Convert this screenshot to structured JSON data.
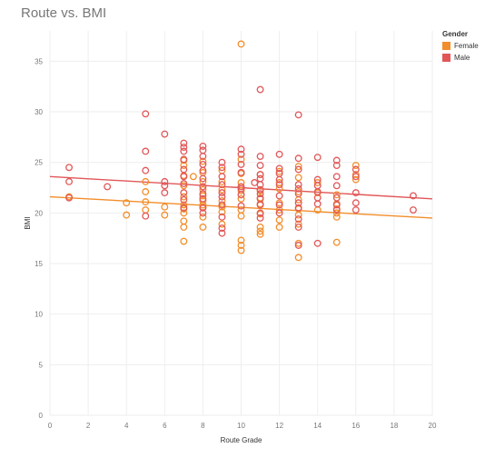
{
  "chart_data": {
    "type": "scatter",
    "title": "Route vs. BMI",
    "xlabel": "Route Grade",
    "ylabel": "BMI",
    "xlim": [
      0,
      20
    ],
    "ylim": [
      0,
      38
    ],
    "xticks": [
      0,
      2,
      4,
      6,
      8,
      10,
      12,
      14,
      16,
      18,
      20
    ],
    "yticks": [
      0,
      5,
      10,
      15,
      20,
      25,
      30,
      35
    ],
    "grid": true,
    "legend": {
      "title": "Gender",
      "position": "top-right"
    },
    "series": [
      {
        "name": "Female",
        "color": "#f28e2b",
        "marker": "open-circle",
        "trend_line": [
          [
            0,
            21.6
          ],
          [
            20,
            19.5
          ]
        ],
        "points": [
          [
            1,
            21.6
          ],
          [
            4,
            21.0
          ],
          [
            4,
            19.8
          ],
          [
            5,
            23.1
          ],
          [
            5,
            22.1
          ],
          [
            5,
            21.1
          ],
          [
            5,
            20.3
          ],
          [
            6,
            20.6
          ],
          [
            6,
            19.8
          ],
          [
            7,
            25.2
          ],
          [
            7,
            24.7
          ],
          [
            7,
            23.7
          ],
          [
            7,
            22.7
          ],
          [
            7,
            21.6
          ],
          [
            7,
            20.8
          ],
          [
            7,
            20.4
          ],
          [
            7,
            20.0
          ],
          [
            7,
            19.2
          ],
          [
            7,
            18.6
          ],
          [
            7,
            17.2
          ],
          [
            7.5,
            23.6
          ],
          [
            8,
            25.1
          ],
          [
            8,
            24.0
          ],
          [
            8,
            23.1
          ],
          [
            8,
            22.3
          ],
          [
            8,
            21.7
          ],
          [
            8,
            21.2
          ],
          [
            8,
            20.8
          ],
          [
            8,
            20.6
          ],
          [
            8,
            19.6
          ],
          [
            8,
            18.6
          ],
          [
            9,
            24.2
          ],
          [
            9,
            23.1
          ],
          [
            9,
            22.3
          ],
          [
            9,
            21.2
          ],
          [
            9,
            20.6
          ],
          [
            9,
            20.1
          ],
          [
            9,
            18.9
          ],
          [
            10,
            25.3
          ],
          [
            10,
            23.9
          ],
          [
            10,
            23.0
          ],
          [
            10,
            22.2
          ],
          [
            10,
            21.4
          ],
          [
            10,
            20.3
          ],
          [
            10,
            19.7
          ],
          [
            10,
            17.3
          ],
          [
            10,
            16.8
          ],
          [
            10,
            16.3
          ],
          [
            11,
            23.8
          ],
          [
            11,
            22.2
          ],
          [
            11,
            21.5
          ],
          [
            11,
            20.9
          ],
          [
            11,
            19.9
          ],
          [
            11,
            18.6
          ],
          [
            11,
            18.2
          ],
          [
            11,
            17.9
          ],
          [
            12,
            24.1
          ],
          [
            12,
            23.0
          ],
          [
            12,
            22.4
          ],
          [
            12,
            21.0
          ],
          [
            12,
            20.3
          ],
          [
            12,
            19.3
          ],
          [
            12,
            18.6
          ],
          [
            13,
            24.6
          ],
          [
            13,
            23.5
          ],
          [
            13,
            22.1
          ],
          [
            13,
            21.3
          ],
          [
            13,
            20.4
          ],
          [
            13,
            19.8
          ],
          [
            13,
            18.9
          ],
          [
            13,
            17.0
          ],
          [
            13,
            15.6
          ],
          [
            14,
            23.0
          ],
          [
            14,
            22.0
          ],
          [
            14,
            20.3
          ],
          [
            15,
            21.8
          ],
          [
            15,
            20.9
          ],
          [
            15,
            20.4
          ],
          [
            15,
            20.0
          ],
          [
            15,
            19.6
          ],
          [
            15,
            17.1
          ],
          [
            16,
            24.7
          ],
          [
            16,
            23.8
          ],
          [
            16,
            23.3
          ]
        ]
      },
      {
        "name": "Male",
        "color": "#e15759",
        "marker": "open-circle",
        "trend_line": [
          [
            0,
            23.6
          ],
          [
            20,
            21.4
          ]
        ],
        "points": [
          [
            1,
            24.5
          ],
          [
            1,
            23.1
          ],
          [
            1,
            21.5
          ],
          [
            3,
            22.6
          ],
          [
            5,
            29.8
          ],
          [
            5,
            26.1
          ],
          [
            5,
            24.2
          ],
          [
            5,
            19.7
          ],
          [
            6,
            27.8
          ],
          [
            6,
            23.1
          ],
          [
            6,
            22.7
          ],
          [
            6,
            22.0
          ],
          [
            7,
            26.9
          ],
          [
            7,
            26.5
          ],
          [
            7,
            26.1
          ],
          [
            7,
            25.3
          ],
          [
            7,
            24.3
          ],
          [
            7,
            23.6
          ],
          [
            7,
            22.9
          ],
          [
            7,
            22.0
          ],
          [
            7,
            21.3
          ],
          [
            7,
            20.5
          ],
          [
            8,
            26.6
          ],
          [
            8,
            26.2
          ],
          [
            8,
            25.6
          ],
          [
            8,
            24.8
          ],
          [
            8,
            24.2
          ],
          [
            8,
            23.4
          ],
          [
            8,
            22.6
          ],
          [
            8,
            21.9
          ],
          [
            8,
            21.4
          ],
          [
            8,
            20.5
          ],
          [
            8,
            20.0
          ],
          [
            9,
            25.0
          ],
          [
            9,
            24.5
          ],
          [
            9,
            23.6
          ],
          [
            9,
            22.8
          ],
          [
            9,
            22.0
          ],
          [
            9,
            21.6
          ],
          [
            9,
            20.8
          ],
          [
            9,
            19.6
          ],
          [
            9,
            18.5
          ],
          [
            9,
            18.0
          ],
          [
            10,
            26.3
          ],
          [
            10,
            25.8
          ],
          [
            10,
            24.8
          ],
          [
            10,
            24.0
          ],
          [
            10,
            22.6
          ],
          [
            10,
            22.4
          ],
          [
            10,
            21.8
          ],
          [
            10,
            20.7
          ],
          [
            10.7,
            23.0
          ],
          [
            11,
            32.2
          ],
          [
            11,
            25.6
          ],
          [
            11,
            24.7
          ],
          [
            11,
            23.8
          ],
          [
            11,
            23.4
          ],
          [
            11,
            22.8
          ],
          [
            11,
            22.3
          ],
          [
            11,
            21.9
          ],
          [
            11,
            21.4
          ],
          [
            11,
            20.8
          ],
          [
            11,
            20.0
          ],
          [
            11,
            19.5
          ],
          [
            12,
            25.8
          ],
          [
            12,
            24.4
          ],
          [
            12,
            23.9
          ],
          [
            12,
            23.3
          ],
          [
            12,
            22.8
          ],
          [
            12,
            21.7
          ],
          [
            12,
            20.8
          ],
          [
            12,
            20.0
          ],
          [
            13,
            29.7
          ],
          [
            13,
            25.4
          ],
          [
            13,
            24.3
          ],
          [
            13,
            22.8
          ],
          [
            13,
            22.4
          ],
          [
            13,
            21.9
          ],
          [
            13,
            21.0
          ],
          [
            13,
            20.5
          ],
          [
            13,
            19.4
          ],
          [
            13,
            18.6
          ],
          [
            13,
            16.8
          ],
          [
            14,
            25.5
          ],
          [
            14,
            23.3
          ],
          [
            14,
            22.7
          ],
          [
            14,
            22.1
          ],
          [
            14,
            21.5
          ],
          [
            14,
            20.9
          ],
          [
            14,
            17.0
          ],
          [
            15,
            25.2
          ],
          [
            15,
            24.7
          ],
          [
            15,
            23.6
          ],
          [
            15,
            22.7
          ],
          [
            15,
            21.5
          ],
          [
            15,
            20.8
          ],
          [
            15,
            20.3
          ],
          [
            16,
            24.3
          ],
          [
            16,
            23.6
          ],
          [
            16,
            22.0
          ],
          [
            16,
            21.0
          ],
          [
            16,
            20.3
          ],
          [
            19,
            21.7
          ],
          [
            19,
            20.3
          ]
        ]
      },
      {
        "name": "",
        "color": "#f28e2b",
        "marker": "open-circle",
        "points": [
          [
            10,
            36.7
          ]
        ]
      }
    ]
  }
}
